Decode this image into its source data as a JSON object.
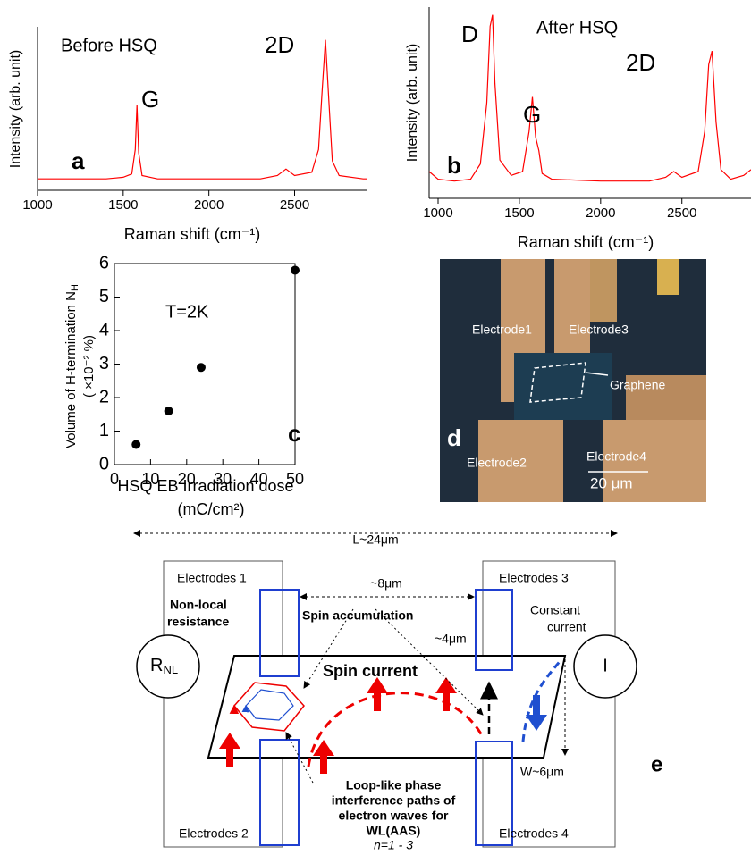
{
  "chart_data": [
    {
      "type": "line",
      "color": "#ff0000",
      "x": [
        1000,
        1200,
        1400,
        1500,
        1550,
        1570,
        1580,
        1590,
        1610,
        1700,
        2000,
        2300,
        2400,
        2450,
        2500,
        2600,
        2640,
        2660,
        2680,
        2700,
        2720,
        2760,
        2900,
        2920
      ],
      "values": [
        0.7,
        0.7,
        0.7,
        0.8,
        1.0,
        2.5,
        5.2,
        2.3,
        0.9,
        0.7,
        0.7,
        0.7,
        0.9,
        1.3,
        0.9,
        1.1,
        2.5,
        6.0,
        9.2,
        5.5,
        1.8,
        0.9,
        0.7,
        0.7
      ],
      "xlim": [
        1000,
        2920
      ],
      "xticks": [
        1000,
        1500,
        2000,
        2500
      ],
      "ylim": [
        0,
        10
      ],
      "xlabel": "Raman shift (cm⁻¹)",
      "ylabel": "Intensity (arb. unit)",
      "annotations": [
        "Before HSQ",
        "G",
        "2D",
        "a"
      ]
    },
    {
      "type": "line",
      "color": "#ff0000",
      "x": [
        945,
        1000,
        1100,
        1200,
        1260,
        1300,
        1320,
        1335,
        1350,
        1380,
        1450,
        1520,
        1560,
        1580,
        1600,
        1620,
        1640,
        1700,
        2000,
        2300,
        2400,
        2450,
        2500,
        2600,
        2640,
        2665,
        2685,
        2710,
        2740,
        2800,
        2880,
        2925
      ],
      "values": [
        1.4,
        1.0,
        0.9,
        1.0,
        1.8,
        5.0,
        9.0,
        9.6,
        6.0,
        2.0,
        1.2,
        1.4,
        3.5,
        5.3,
        3.2,
        2.5,
        1.3,
        1.0,
        0.9,
        0.9,
        1.1,
        1.4,
        1.1,
        1.4,
        3.5,
        7.0,
        7.7,
        4.0,
        1.5,
        1.0,
        1.2,
        1.5
      ],
      "xlim": [
        945,
        2925
      ],
      "xticks": [
        1000,
        1500,
        2000,
        2500
      ],
      "ylim": [
        0,
        10
      ],
      "xlabel": "Raman shift (cm⁻¹)",
      "ylabel": "Intensity (arb. unit)",
      "annotations": [
        "D",
        "After HSQ",
        "G",
        "2D",
        "b"
      ]
    },
    {
      "type": "scatter",
      "color": "#000000",
      "x": [
        6,
        15,
        24,
        50
      ],
      "values": [
        0.6,
        1.6,
        2.9,
        5.8
      ],
      "xlim": [
        0,
        50
      ],
      "xticks": [
        0,
        10,
        20,
        30,
        40,
        50
      ],
      "ylim": [
        0,
        6
      ],
      "yticks": [
        0,
        1,
        2,
        3,
        4,
        5,
        6
      ],
      "xlabel": "HSQ EB Irradiation dose",
      "xlabel_unit": "(mC/cm²)",
      "ylabel": "Volume of H-termination N",
      "ylabel_sub": "H",
      "ylabel_unit": "( ×10⁻² %)",
      "annotations": [
        "T=2K",
        "c"
      ]
    }
  ],
  "photo": {
    "labels": [
      "Electrode1",
      "Electrode3",
      "Graphene",
      "Electrode2",
      "Electrode4",
      "20 μm",
      "d"
    ]
  },
  "diagram": {
    "L": "L~24μm",
    "gap": "~8μm",
    "electrode1": "Electrodes 1",
    "electrode3": "Electrodes 3",
    "nonlocal": [
      "Non-local",
      "resistance"
    ],
    "spin_accumulation": "Spin accumulation",
    "constant_current": [
      "Constant",
      "current"
    ],
    "width4": "~4μm",
    "rnl": "R",
    "rnl_sub": "NL",
    "spin_current": "Spin current",
    "current": "I",
    "loop": [
      "Loop-like phase",
      "interference paths of",
      "electron waves for",
      "WL(AAS)"
    ],
    "n": "n=1 - 3",
    "W": "W~6μm",
    "panel": "e",
    "electrode2": "Electrodes 2",
    "electrode4": "Electrodes 4"
  }
}
